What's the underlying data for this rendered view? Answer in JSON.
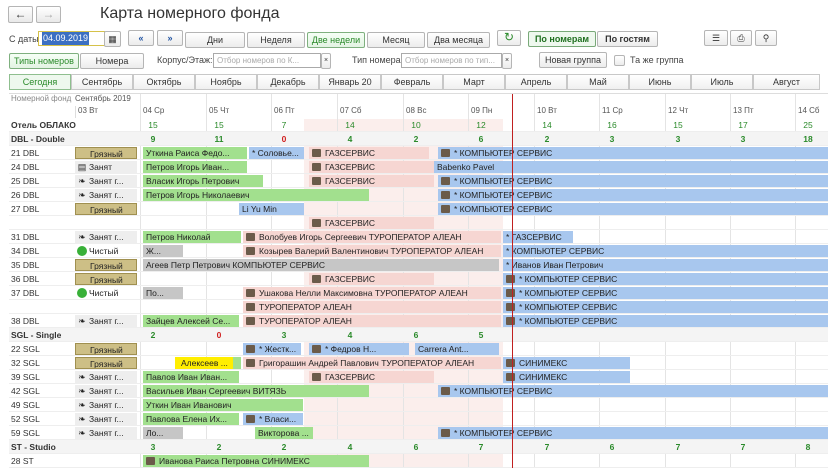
{
  "window": {
    "title": "Карта номерного фонда",
    "back_icon": "arrow-left-icon",
    "forward_icon": "arrow-right-icon"
  },
  "toolbar": {
    "date_label": "С даты:",
    "date_value": "04.09.2019",
    "period_buttons": [
      "Дни",
      "Неделя",
      "Две недели",
      "Месяц",
      "Два месяца"
    ],
    "selected_period": "Две недели",
    "mode_buttons": [
      "По номерам",
      "По гостям"
    ],
    "room_types_button": "Типы номеров",
    "rooms_button": "Номера",
    "corpus_label": "Корпус/Этаж:",
    "corpus_placeholder": "Отбор номеров по К...",
    "room_type_label": "Тип номера:",
    "room_type_placeholder": "Отбор номеров по тип...",
    "new_group_button": "Новая группа",
    "same_group_label": "Та же группа"
  },
  "months": [
    "Сегодня",
    "Сентябрь",
    "Октябрь",
    "Ноябрь",
    "Декабрь",
    "Январь 20",
    "Февраль",
    "Март",
    "Апрель",
    "Май",
    "Июнь",
    "Июль",
    "Август"
  ],
  "grid": {
    "corner_label": "Номерной фонд",
    "month_label": "Сентябрь 2019",
    "days": [
      "03 Вт",
      "04 Ср",
      "05 Чт",
      "06 Пт",
      "07 Сб",
      "08 Вс",
      "09 Пн",
      "10 Вт",
      "11 Ср",
      "12 Чт",
      "13 Пт",
      "14 Сб"
    ],
    "hotel": "Отель ОБЛАКО",
    "hotel_counts": [
      "15",
      "15",
      "7",
      "14",
      "10",
      "12",
      "14",
      "16",
      "15",
      "17",
      "25"
    ]
  },
  "groups": [
    {
      "name": "DBL - Double",
      "counts": [
        "9",
        "11",
        "0",
        "4",
        "2",
        "6",
        "2",
        "3",
        "3",
        "3",
        "18"
      ]
    },
    {
      "name": "SGL - Single",
      "counts": [
        "2",
        "0",
        "3",
        "4",
        "6",
        "5",
        "",
        "",
        "",
        "",
        ""
      ]
    },
    {
      "name": "ST - Studio",
      "counts": [
        "3",
        "2",
        "2",
        "4",
        "6",
        "7",
        "7",
        "6",
        "7",
        "7",
        "8"
      ]
    }
  ],
  "rooms": [
    {
      "room": "21 DBL",
      "status": "Грязный"
    },
    {
      "room": "24 DBL",
      "status": "Занят"
    },
    {
      "room": "25 DBL",
      "status": "Занят г..."
    },
    {
      "room": "26 DBL",
      "status": "Занят г..."
    },
    {
      "room": "27 DBL",
      "status": "Грязный"
    },
    {
      "room": "31 DBL",
      "status": "Занят г..."
    },
    {
      "room": "34 DBL",
      "status": "Чистый"
    },
    {
      "room": "35 DBL",
      "status": "Грязный"
    },
    {
      "room": "36 DBL",
      "status": "Грязный"
    },
    {
      "room": "37 DBL",
      "status": "Чистый"
    },
    {
      "room": "38 DBL",
      "status": "Занят г..."
    },
    {
      "room": "22 SGL",
      "status": "Грязный"
    },
    {
      "room": "32 SGL",
      "status": "Грязный"
    },
    {
      "room": "39 SGL",
      "status": "Занят г..."
    },
    {
      "room": "42 SGL",
      "status": "Занят г..."
    },
    {
      "room": "49 SGL",
      "status": "Занят г..."
    },
    {
      "room": "52 SGL",
      "status": "Занят г..."
    },
    {
      "room": "59 SGL",
      "status": "Занят г..."
    },
    {
      "room": "28 ST",
      "status": ""
    }
  ],
  "bookings": {
    "b1": "Уткина Раиса Федо...",
    "b2": "* Соловье...",
    "b3": "ГАЗСЕРВИС",
    "b4": "* КОМПЬЮТЕР СЕРВИС",
    "b5": "Петров Игорь Иван...",
    "b6": "ГАЗСЕРВИС",
    "b7": "Babenko Pavel",
    "b8": "Власик Игорь Петрович",
    "b9": "ГАЗСЕРВИС",
    "b10": "* КОМПЬЮТЕР СЕРВИС",
    "b11": "Петров Игорь Николаевич",
    "b12": "* КОМПЬЮТЕР СЕРВИС",
    "b13": "Li Yu Min",
    "b14": "* КОМПЬЮТЕР СЕРВИС",
    "b15": "ГАЗСЕРВИС",
    "b16": "Петров Николай",
    "b17": "Волобуев Игорь Сергеевич ТУРОПЕРАТОР АЛЕАН",
    "b18": "* ГАЗСЕРВИС",
    "b19": "Ж...",
    "b20": "Козырев Валерий Валентинович ТУРОПЕРАТОР АЛЕАН",
    "b21": "* КОМПЬЮТЕР СЕРВИС",
    "b22": "Агеев Петр Петрович КОМПЬЮТЕР СЕРВИС",
    "b23": "* Иванов Иван Петрович",
    "b24": "ГАЗСЕРВИС",
    "b25": "* КОМПЬЮТЕР СЕРВИС",
    "b26": "По...",
    "b27": "Ушакова Нелли Максимовна ТУРОПЕРАТОР АЛЕАН",
    "b28": "* КОМПЬЮТЕР СЕРВИС",
    "b29": "ТУРОПЕРАТОР АЛЕАН",
    "b30": "* КОМПЬЮТЕР СЕРВИС",
    "b31": "Зайцев Алексей Се...",
    "b32": "ТУРОПЕРАТОР АЛЕАН",
    "b33": "* КОМПЬЮТЕР СЕРВИС",
    "b34": "* Жестк...",
    "b35": "* Федров Н...",
    "b36": "Carrera Ant...",
    "b37": "Алексеев ...",
    "b38": "Григорашин Андрей Павлович ТУРОПЕРАТОР АЛЕАН",
    "b39": "СИНИМЕКС",
    "b40": "Павлов Иван Иван...",
    "b41": "ГАЗСЕРВИС",
    "b42": "СИНИМЕКС",
    "b43": "Васильев Иван Сергеевич ВИТЯЗЬ",
    "b44": "* КОМПЬЮТЕР СЕРВИС",
    "b45": "Уткин Иван Иванович",
    "b46": "Павлова Елена Их...",
    "b47": "* Власи...",
    "b48": "Ло...",
    "b49": "Викторова ...",
    "b50": "* КОМПЬЮТЕР СЕРВИС",
    "b51": "Иванова Раиса Петровна СИНИМЕКС"
  }
}
